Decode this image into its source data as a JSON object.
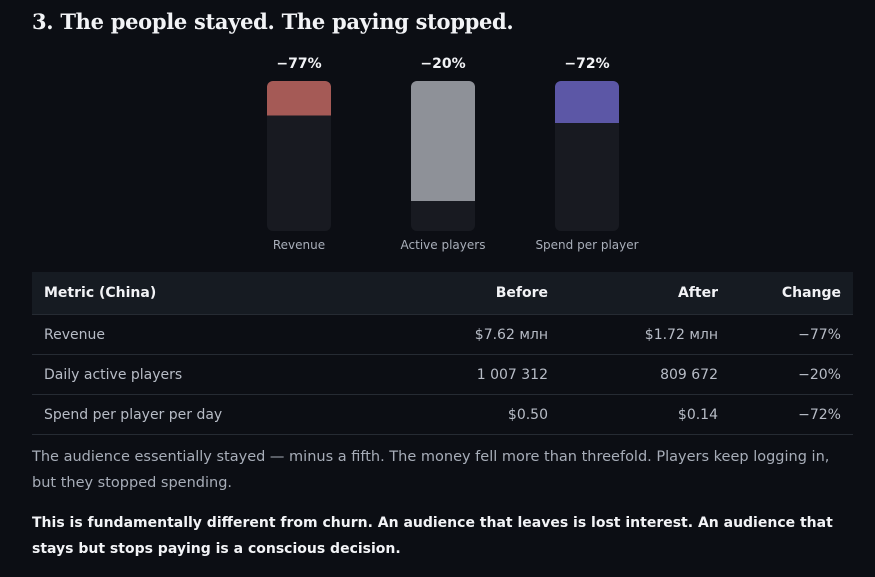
{
  "heading": "3. The people stayed. The paying stopped.",
  "colors": {
    "revenue": "#a55a56",
    "active_players": "#8e9198",
    "spend_per_player": "#5c57a6",
    "bar_track": "#181a21"
  },
  "chart_data": {
    "type": "bar",
    "categories": [
      "Revenue",
      "Active players",
      "Spend per player"
    ],
    "values": [
      -77,
      -20,
      -72
    ],
    "value_labels": [
      "−77%",
      "−20%",
      "−72%"
    ],
    "title": "",
    "xlabel": "",
    "ylabel": "",
    "ylim": [
      -100,
      0
    ],
    "grid": false
  },
  "table": {
    "headers": [
      "Metric (China)",
      "Before",
      "After",
      "Change"
    ],
    "rows": [
      [
        "Revenue",
        "$7.62 млн",
        "$1.72 млн",
        "−77%"
      ],
      [
        "Daily active players",
        "1 007 312",
        "809 672",
        "−20%"
      ],
      [
        "Spend per player per day",
        "$0.50",
        "$0.14",
        "−72%"
      ]
    ]
  },
  "paragraphs": [
    "The audience essentially stayed — minus a fifth. The money fell more than threefold. Players keep logging in, but they stopped spending.",
    "This is fundamentally different from churn. An audience that leaves is lost interest. An audience that stays but stops paying is a conscious decision."
  ]
}
